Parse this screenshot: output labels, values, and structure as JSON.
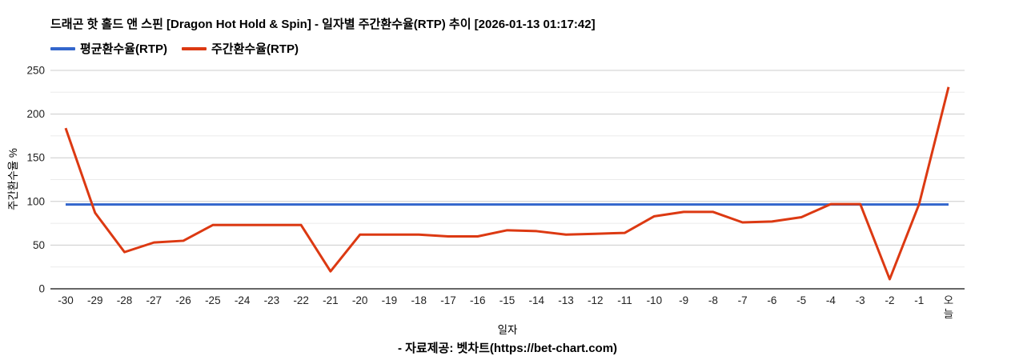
{
  "title": "드래곤 핫 홀드 앤 스핀 [Dragon Hot Hold & Spin] - 일자별 주간환수율(RTP) 추이 [2026-01-13 01:17:42]",
  "legend": [
    {
      "label": "평균환수율(RTP)",
      "color": "#3366cc"
    },
    {
      "label": "주간환수율(RTP)",
      "color": "#dc3912"
    }
  ],
  "footer": "- 자료제공: 벳차트(https://bet-chart.com)",
  "chart_data": {
    "type": "line",
    "title": "드래곤 핫 홀드 앤 스핀 [Dragon Hot Hold & Spin] - 일자별 주간환수율(RTP) 추이 [2026-01-13 01:17:42]",
    "xlabel": "일자",
    "ylabel": "주간환수율 %",
    "ylim": [
      0,
      250
    ],
    "yticks": [
      0,
      50,
      100,
      150,
      200,
      250
    ],
    "yticks_minor": [
      25,
      75,
      125,
      175,
      225
    ],
    "grid": true,
    "legend_position": "top-left",
    "categories": [
      "-30",
      "-29",
      "-28",
      "-27",
      "-26",
      "-25",
      "-24",
      "-23",
      "-22",
      "-21",
      "-20",
      "-19",
      "-18",
      "-17",
      "-16",
      "-15",
      "-14",
      "-13",
      "-12",
      "-11",
      "-10",
      "-9",
      "-8",
      "-7",
      "-6",
      "-5",
      "-4",
      "-3",
      "-2",
      "-1",
      "오늘"
    ],
    "series": [
      {
        "name": "평균환수율(RTP)",
        "type": "constant",
        "value": 96.5,
        "color": "#3366cc"
      },
      {
        "name": "주간환수율(RTP)",
        "type": "values",
        "color": "#dc3912",
        "values": [
          184,
          87,
          42,
          53,
          55,
          73,
          73,
          73,
          73,
          20,
          62,
          62,
          62,
          60,
          60,
          67,
          66,
          62,
          63,
          64,
          83,
          88,
          88,
          76,
          77,
          82,
          97,
          97,
          11,
          97,
          231
        ]
      }
    ],
    "colors": {
      "grid_major": "#cccccc",
      "grid_minor": "#ebebeb",
      "axis": "#333333",
      "tick_text": "#222222"
    }
  }
}
